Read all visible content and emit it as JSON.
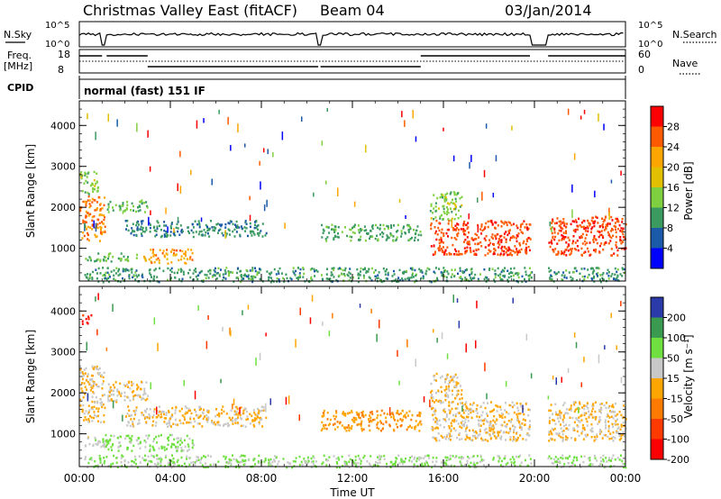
{
  "header": {
    "title": "Christmas Valley East (fitACF)",
    "beam": "Beam 04",
    "date": "03/Jan/2014"
  },
  "panels": {
    "nsky": {
      "left_label": "N.Sky",
      "left_ticks": [
        "10^5",
        "10^0"
      ],
      "right_label": "N.Search",
      "right_ticks": [
        "10^5",
        "10^0"
      ]
    },
    "freq": {
      "left_label_1": "Freq.",
      "left_label_2": "[MHz]",
      "left_ticks": [
        "18",
        "8"
      ],
      "right_label": "Nave",
      "right_ticks": [
        "60",
        "0"
      ]
    },
    "cpid": {
      "label": "CPID",
      "mode": "normal (fast) 151 IF"
    }
  },
  "x_axis": {
    "label": "Time UT",
    "ticks": [
      "00:00",
      "04:00",
      "08:00",
      "12:00",
      "16:00",
      "20:00",
      "00:00"
    ]
  },
  "power_colorbar": {
    "label": "Power [dB]",
    "ticks": [
      "28",
      "24",
      "20",
      "16",
      "12",
      "8",
      "4"
    ],
    "colors": [
      "#ff0000",
      "#ff5a00",
      "#ffa500",
      "#e2c000",
      "#7fd040",
      "#3a9a60",
      "#1a5aa8",
      "#0000ff"
    ]
  },
  "velocity_colorbar": {
    "label": "Velocity [m s⁻¹]",
    "ticks": [
      "200",
      "100",
      "50",
      "15",
      "-15",
      "-50",
      "-100",
      "-200"
    ],
    "colors": [
      "#2a3aa8",
      "#3a9a50",
      "#6fe040",
      "#c8c8c8",
      "#ffa500",
      "#ff7a00",
      "#ff3a00",
      "#ff0000"
    ]
  },
  "chart_data": [
    {
      "type": "heatmap",
      "panel": "power",
      "ylabel": "Slant Range [km]",
      "xlabel": "",
      "xlim": [
        0,
        24
      ],
      "ylim": [
        200,
        4600
      ],
      "y_ticks": [
        1000,
        2000,
        3000,
        4000
      ],
      "x_ticks": [
        "00:00",
        "04:00",
        "08:00",
        "12:00",
        "16:00",
        "20:00",
        "00:00"
      ],
      "colorbar_range": [
        0,
        32
      ],
      "regions": [
        {
          "t": [
            0.0,
            1.1
          ],
          "r": [
            1200,
            2300
          ],
          "value": 24
        },
        {
          "t": [
            0.0,
            0.8
          ],
          "r": [
            2300,
            2900
          ],
          "value": 14
        },
        {
          "t": [
            1.2,
            3.0
          ],
          "r": [
            1900,
            2200
          ],
          "value": 12
        },
        {
          "t": [
            2.0,
            8.2
          ],
          "r": [
            1300,
            1700
          ],
          "value": 9
        },
        {
          "t": [
            2.8,
            5.0
          ],
          "r": [
            650,
            1000
          ],
          "value": 22
        },
        {
          "t": [
            0.2,
            2.5
          ],
          "r": [
            700,
            900
          ],
          "value": 12
        },
        {
          "t": [
            10.6,
            15.0
          ],
          "r": [
            1200,
            1600
          ],
          "value": 11
        },
        {
          "t": [
            15.4,
            19.8
          ],
          "r": [
            850,
            1700
          ],
          "value": 27
        },
        {
          "t": [
            15.4,
            16.8
          ],
          "r": [
            1700,
            2400
          ],
          "value": 14
        },
        {
          "t": [
            20.6,
            24.0
          ],
          "r": [
            850,
            1800
          ],
          "value": 27
        },
        {
          "t": [
            0.2,
            24.0
          ],
          "r": [
            200,
            550
          ],
          "value": 10
        }
      ]
    },
    {
      "type": "heatmap",
      "panel": "velocity",
      "ylabel": "Slant Range [km]",
      "xlabel": "Time UT",
      "xlim": [
        0,
        24
      ],
      "ylim": [
        200,
        4600
      ],
      "y_ticks": [
        1000,
        2000,
        3000,
        4000
      ],
      "x_ticks": [
        "00:00",
        "04:00",
        "08:00",
        "12:00",
        "16:00",
        "20:00",
        "00:00"
      ],
      "colorbar_range": [
        -200,
        200
      ],
      "regions": [
        {
          "t": [
            0.0,
            1.1
          ],
          "r": [
            1300,
            2700
          ],
          "value": 0
        },
        {
          "t": [
            1.2,
            3.0
          ],
          "r": [
            1800,
            2300
          ],
          "value": 10
        },
        {
          "t": [
            2.0,
            8.2
          ],
          "r": [
            1200,
            1700
          ],
          "value": 0
        },
        {
          "t": [
            1.0,
            5.0
          ],
          "r": [
            600,
            1000
          ],
          "value": 60
        },
        {
          "t": [
            0.2,
            1.2
          ],
          "r": [
            700,
            950
          ],
          "value": 30
        },
        {
          "t": [
            10.6,
            15.0
          ],
          "r": [
            1100,
            1600
          ],
          "value": -40
        },
        {
          "t": [
            15.4,
            19.8
          ],
          "r": [
            850,
            1800
          ],
          "value": 0
        },
        {
          "t": [
            15.4,
            16.8
          ],
          "r": [
            1800,
            2500
          ],
          "value": 0
        },
        {
          "t": [
            20.6,
            24.0
          ],
          "r": [
            850,
            1800
          ],
          "value": 0
        },
        {
          "t": [
            0.2,
            24.0
          ],
          "r": [
            200,
            500
          ],
          "value": 60
        },
        {
          "t": [
            0.0,
            0.5
          ],
          "r": [
            3700,
            3950
          ],
          "value": -180
        }
      ]
    }
  ]
}
